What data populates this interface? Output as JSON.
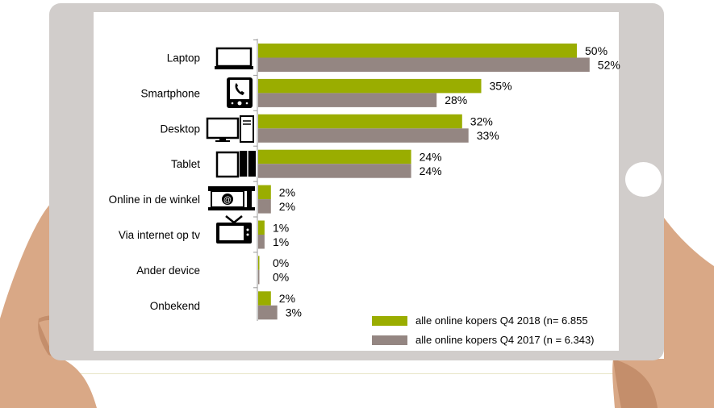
{
  "chart_data": {
    "type": "bar",
    "orientation": "horizontal",
    "categories": [
      "Laptop",
      "Smartphone",
      "Desktop",
      "Tablet",
      "Online in de winkel",
      "Via internet op tv",
      "Ander device",
      "Onbekend"
    ],
    "icons": [
      "laptop-icon",
      "smartphone-icon",
      "desktop-icon",
      "tablet-icon",
      "store-terminal-icon",
      "tv-icon",
      "",
      ""
    ],
    "series": [
      {
        "name": "alle online kopers Q4 2018 (n= 6.855",
        "values": [
          50,
          35,
          32,
          24,
          2,
          1,
          0,
          2
        ],
        "labels": [
          "50%",
          "35%",
          "32%",
          "24%",
          "2%",
          "1%",
          "0%",
          "2%"
        ],
        "color": "#9aad00"
      },
      {
        "name": "alle online kopers Q4 2017 (n = 6.343)",
        "values": [
          52,
          28,
          33,
          24,
          2,
          1,
          0,
          3
        ],
        "labels": [
          "52%",
          "28%",
          "33%",
          "24%",
          "2%",
          "1%",
          "0%",
          "3%"
        ],
        "color": "#948682"
      }
    ],
    "xlim": [
      0,
      60
    ],
    "grid": false,
    "legend": "bottom-right"
  },
  "colors": {
    "tablet_frame": "#d1cdcb",
    "hand": "#d9a886",
    "hand_shadow": "#c48e6b"
  }
}
